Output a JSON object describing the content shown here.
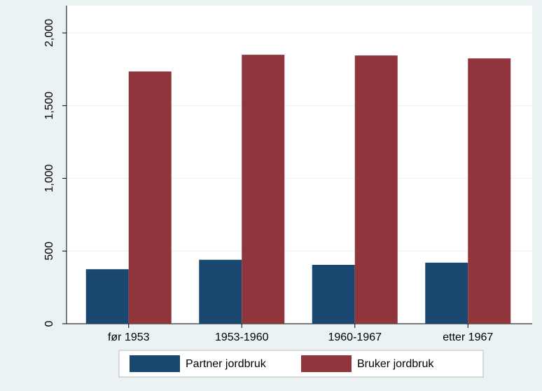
{
  "chart_data": {
    "type": "bar",
    "categories": [
      "før 1953",
      "1953-1960",
      "1960-1967",
      "etter 1967"
    ],
    "series": [
      {
        "name": "Partner jordbruk",
        "color": "#1a476f",
        "values": [
          375,
          440,
          405,
          420
        ]
      },
      {
        "name": "Bruker jordbruk",
        "color": "#90353b",
        "values": [
          1735,
          1850,
          1845,
          1825
        ]
      }
    ],
    "ylim": [
      0,
      2000
    ],
    "yticks": [
      0,
      500,
      {
        "value": 1000,
        "label": "1,000"
      },
      {
        "value": 1500,
        "label": "1,500"
      },
      {
        "value": 2000,
        "label": "2,000"
      }
    ],
    "grid": true
  }
}
